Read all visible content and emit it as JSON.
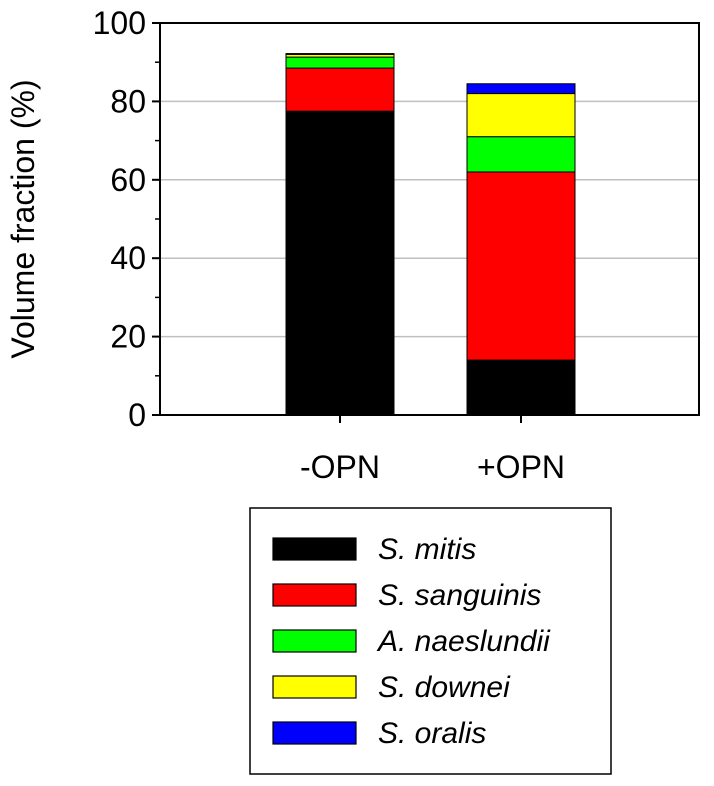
{
  "chart_data": {
    "type": "bar",
    "stacked": true,
    "categories": [
      "-OPN",
      "+OPN"
    ],
    "series": [
      {
        "name": "S. mitis",
        "color": "#000000",
        "values": [
          77.5,
          14.0
        ]
      },
      {
        "name": "S. sanguinis",
        "color": "#ff0000",
        "values": [
          11.0,
          48.0
        ]
      },
      {
        "name": "A. naeslundii",
        "color": "#00ff00",
        "values": [
          2.8,
          9.0
        ]
      },
      {
        "name": "S. downei",
        "color": "#ffff00",
        "values": [
          0.7,
          11.0
        ]
      },
      {
        "name": "S. oralis",
        "color": "#0000ff",
        "values": [
          0.2,
          2.5
        ]
      }
    ],
    "title": "",
    "xlabel": "",
    "ylabel": "Volume fraction (%)",
    "ylim": [
      0,
      100
    ],
    "yticks": [
      "0",
      "20",
      "40",
      "60",
      "80",
      "100"
    ],
    "grid": "horizontal",
    "legend_position": "bottom"
  }
}
